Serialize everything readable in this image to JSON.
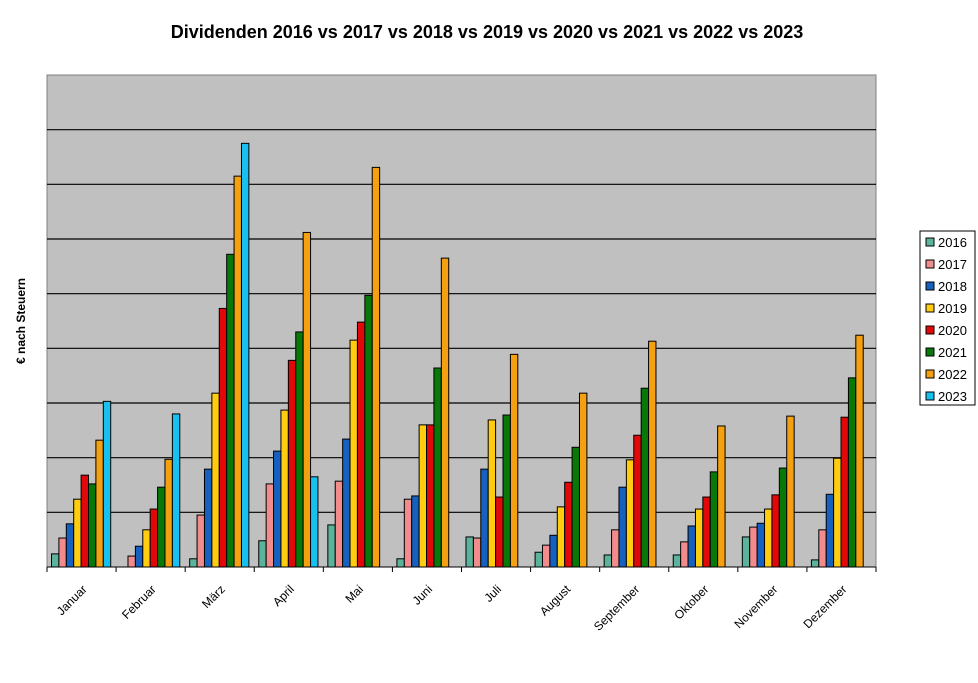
{
  "chart_data": {
    "type": "bar",
    "title": "Dividenden 2016 vs 2017 vs 2018 vs 2019 vs 2020 vs 2021 vs 2022 vs 2023",
    "xlabel": "",
    "ylabel": "€ nach Steuern",
    "y_units_note": "values in gridline units (no y tick labels shown)",
    "ylim": [
      0,
      9
    ],
    "grid": true,
    "legend_position": "right",
    "categories": [
      "Januar",
      "Februar",
      "März",
      "April",
      "Mai",
      "Juni",
      "Juli",
      "August",
      "September",
      "Oktober",
      "November",
      "Dezember"
    ],
    "series": [
      {
        "name": "2016",
        "color": "#5bb39b",
        "values": [
          0.24,
          0,
          0.15,
          0.48,
          0.77,
          0.15,
          0.55,
          0.27,
          0.22,
          0.22,
          0.55,
          0.13
        ]
      },
      {
        "name": "2017",
        "color": "#f28c8c",
        "values": [
          0.53,
          0.2,
          0.95,
          1.52,
          1.57,
          1.24,
          0.53,
          0.4,
          0.68,
          0.46,
          0.73,
          0.68
        ]
      },
      {
        "name": "2018",
        "color": "#1660c0",
        "values": [
          0.79,
          0.38,
          1.79,
          2.12,
          2.34,
          1.3,
          1.79,
          0.58,
          1.46,
          0.75,
          0.8,
          1.33
        ]
      },
      {
        "name": "2019",
        "color": "#ffcc10",
        "values": [
          1.24,
          0.68,
          3.18,
          2.87,
          4.15,
          2.6,
          2.69,
          1.1,
          1.96,
          1.06,
          1.06,
          1.99
        ]
      },
      {
        "name": "2020",
        "color": "#e00808",
        "values": [
          1.68,
          1.06,
          4.73,
          3.78,
          4.48,
          2.6,
          1.28,
          1.55,
          2.41,
          1.28,
          1.32,
          2.74
        ]
      },
      {
        "name": "2021",
        "color": "#087808",
        "values": [
          1.52,
          1.46,
          5.72,
          4.3,
          4.97,
          3.64,
          2.78,
          2.19,
          3.27,
          1.74,
          1.81,
          3.46
        ]
      },
      {
        "name": "2022",
        "color": "#f5a010",
        "values": [
          2.32,
          1.97,
          7.15,
          6.12,
          7.31,
          5.65,
          3.89,
          3.18,
          4.13,
          2.58,
          2.76,
          4.24
        ]
      },
      {
        "name": "2023",
        "color": "#18c0f0",
        "values": [
          3.03,
          2.8,
          7.75,
          1.65,
          null,
          null,
          null,
          null,
          null,
          null,
          null,
          null
        ]
      }
    ]
  }
}
